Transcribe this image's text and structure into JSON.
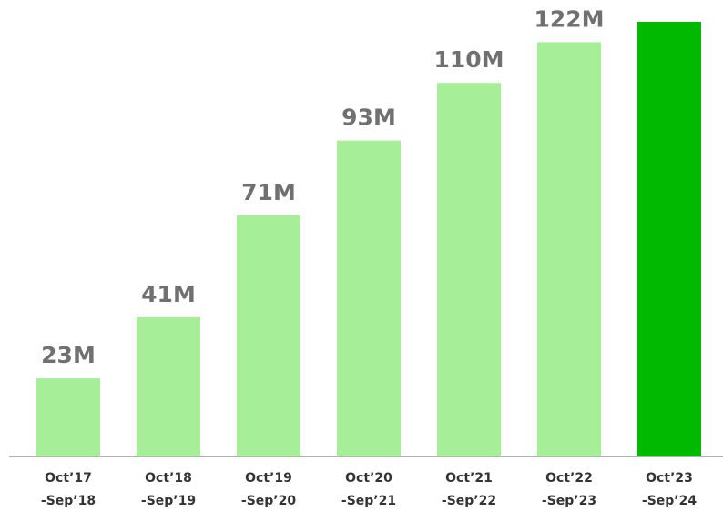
{
  "chart_data": {
    "type": "bar",
    "categories": [
      [
        "Oct’17",
        "-Sep’18"
      ],
      [
        "Oct’18",
        "-Sep’19"
      ],
      [
        "Oct’19",
        "-Sep’20"
      ],
      [
        "Oct’20",
        "-Sep’21"
      ],
      [
        "Oct’21",
        "-Sep’22"
      ],
      [
        "Oct’22",
        "-Sep’23"
      ],
      [
        "Oct’23",
        "-Sep’24"
      ]
    ],
    "values": [
      23,
      41,
      71,
      93,
      110,
      122,
      128
    ],
    "value_labels": [
      "23M",
      "41M",
      "71M",
      "93M",
      "110M",
      "122M",
      null
    ],
    "colors": [
      "#a6ee98",
      "#a6ee98",
      "#a6ee98",
      "#a6ee98",
      "#a6ee98",
      "#a6ee98",
      "#00b900"
    ]
  }
}
